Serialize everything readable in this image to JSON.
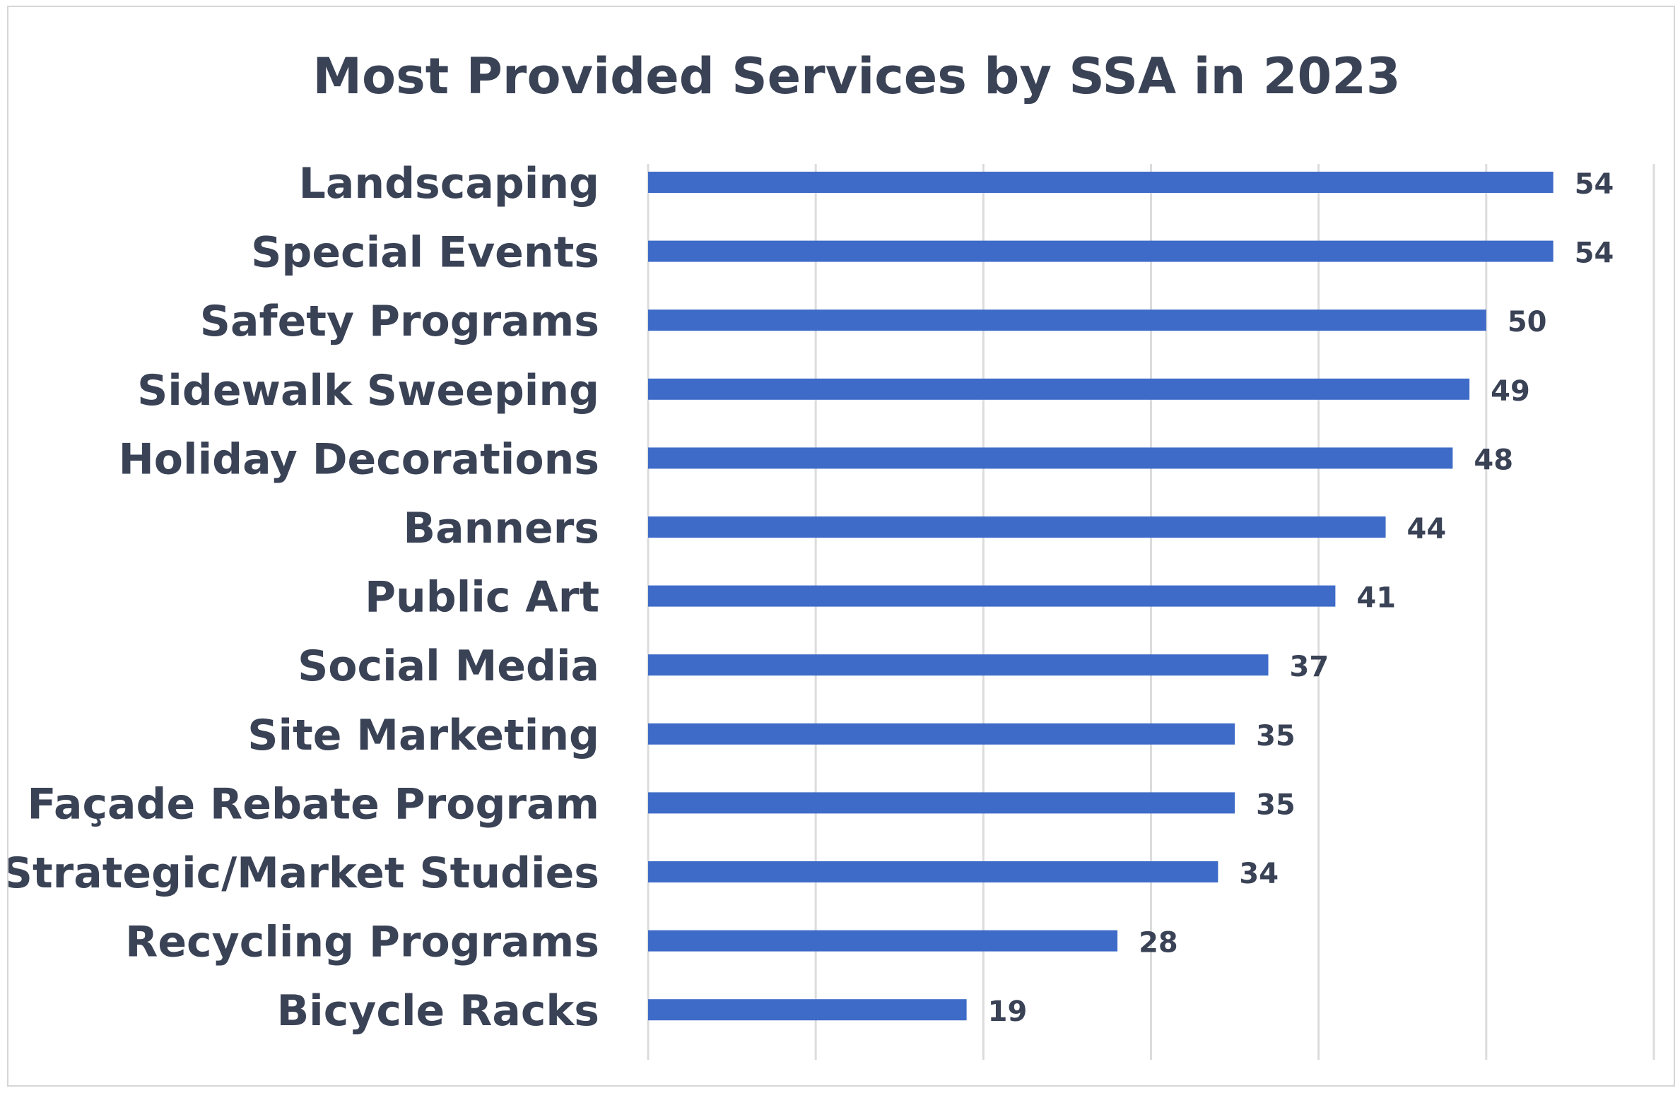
{
  "chart_data": {
    "type": "bar",
    "orientation": "horizontal",
    "title": "Most Provided Services by SSA in 2023",
    "xlabel": "",
    "ylabel": "",
    "xlim": [
      0,
      60
    ],
    "grid": true,
    "legend": "none",
    "bar_color": "#3e6bc8",
    "text_color": "#3a4256",
    "categories": [
      "Landscaping",
      "Special Events",
      "Safety Programs",
      "Sidewalk Sweeping",
      "Holiday Decorations",
      "Banners",
      "Public Art",
      "Social Media",
      "Site Marketing",
      "Façade Rebate Program",
      "Strategic/Market Studies",
      "Recycling Programs",
      "Bicycle Racks"
    ],
    "values": [
      54,
      54,
      50,
      49,
      48,
      44,
      41,
      37,
      35,
      35,
      34,
      28,
      19
    ]
  }
}
